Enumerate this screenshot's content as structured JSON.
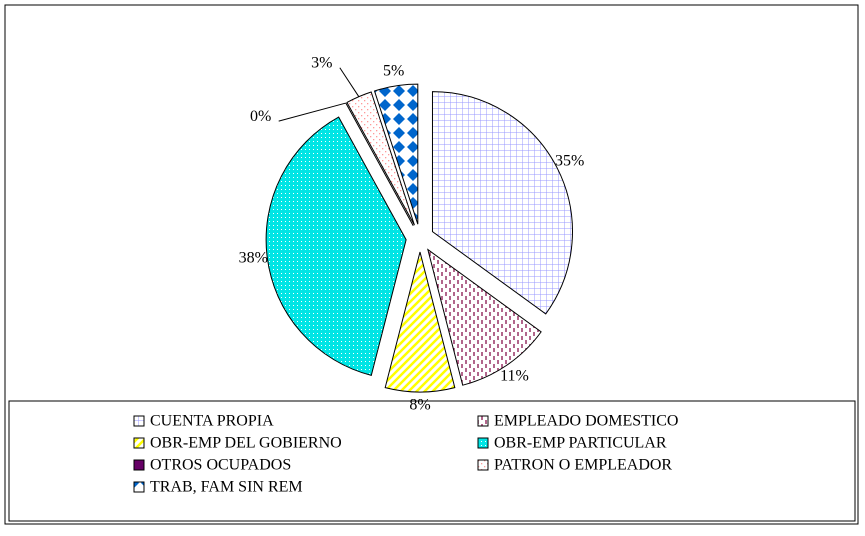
{
  "chart_data": {
    "type": "pie",
    "categories": [
      "CUENTA PROPIA",
      "EMPLEADO DOMESTICO",
      "OBR-EMP DEL GOBIERNO",
      "OBR-EMP PARTICULAR",
      "OTROS OCUPADOS",
      "PATRON O EMPLEADOR",
      "TRAB, FAM SIN REM"
    ],
    "values": [
      35,
      11,
      8,
      38,
      0,
      3,
      5
    ],
    "value_labels": [
      "35%",
      "11%",
      "8%",
      "38%",
      "0%",
      "3%",
      "5%"
    ],
    "colors": [
      "#9999ff",
      "#993366",
      "#ffff00",
      "#00e5e5",
      "#660066",
      "#ff9999",
      "#0066cc"
    ],
    "legend": "bottom"
  }
}
